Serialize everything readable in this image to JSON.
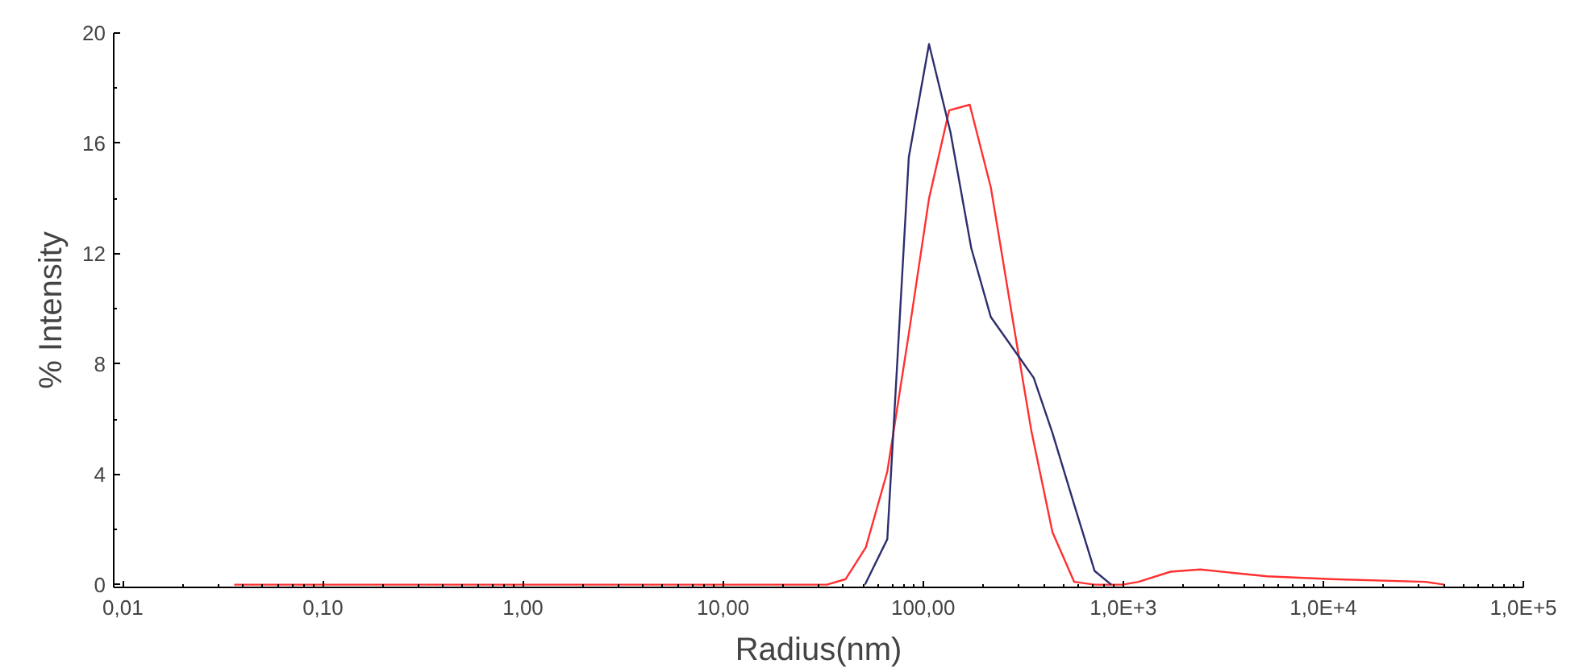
{
  "chart_data": {
    "type": "line",
    "xlabel": "Radius(nm)",
    "ylabel": "% Intensity",
    "log": "x",
    "grid": false,
    "marker": "none",
    "line_style": "solid",
    "xlim": [
      0.009,
      100000
    ],
    "ylim": [
      -0.1,
      20
    ],
    "xticks": [
      {
        "value": 0.01,
        "label": "0,01"
      },
      {
        "value": 0.1,
        "label": "0,10"
      },
      {
        "value": 1,
        "label": "1,00"
      },
      {
        "value": 10,
        "label": "10,00"
      },
      {
        "value": 100,
        "label": "100,00"
      },
      {
        "value": 1000,
        "label": "1,0E+3"
      },
      {
        "value": 10000,
        "label": "1,0E+4"
      },
      {
        "value": 100000,
        "label": "1,0E+5"
      }
    ],
    "yticks": [
      0,
      4,
      8,
      12,
      16,
      20
    ],
    "series": [
      {
        "color": "#ff3030",
        "x": [
          0.036,
          33,
          41,
          51.7,
          66.2,
          84.8,
          107,
          135,
          171,
          218,
          279,
          347,
          443,
          569,
          719,
          991,
          1191,
          1726,
          2427,
          5250,
          11000,
          32500,
          40300
        ],
        "values": [
          0,
          0,
          0.2,
          1.35,
          4.1,
          9.1,
          14.0,
          17.2,
          17.4,
          14.4,
          9.7,
          5.6,
          1.9,
          0.1,
          0,
          0,
          0.1,
          0.47,
          0.55,
          0.3,
          0.2,
          0.1,
          0
        ]
      },
      {
        "color": "#2e2e6e",
        "x": [
          51.2,
          66.2,
          84.8,
          107,
          137,
          174,
          218,
          357,
          443,
          569,
          719,
          872
        ],
        "values": [
          0,
          1.65,
          15.5,
          19.6,
          16.4,
          12.2,
          9.7,
          7.5,
          5.5,
          2.9,
          0.5,
          0
        ]
      }
    ]
  }
}
